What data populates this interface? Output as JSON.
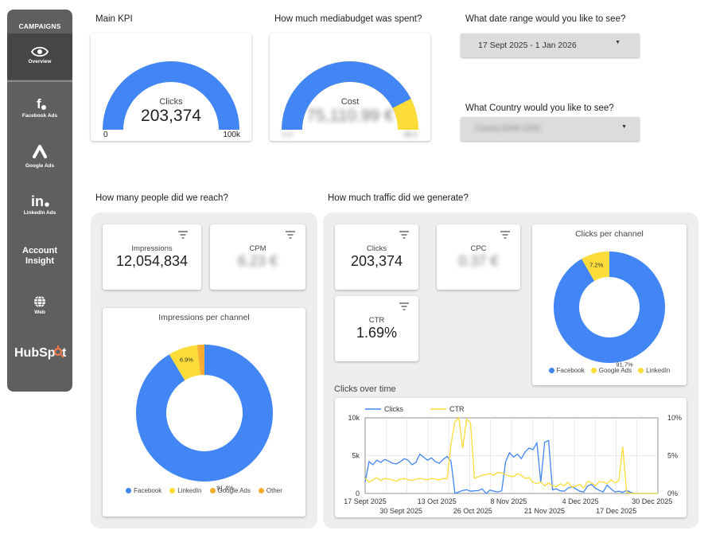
{
  "sidebar": {
    "header": "CAMPAIGNS",
    "items": [
      {
        "label": "Overview",
        "icon": "eye-icon"
      },
      {
        "label": "Facebook Ads",
        "icon": "facebook-icon"
      },
      {
        "label": "Google Ads",
        "icon": "google-ads-icon"
      },
      {
        "label": "LinkedIn Ads",
        "icon": "linkedin-icon"
      },
      {
        "label": "Account Insight",
        "icon": ""
      },
      {
        "label": "Web",
        "icon": "globe-icon"
      },
      {
        "label": "HubSpot",
        "icon": "hubspot-logo"
      }
    ]
  },
  "main_kpi": {
    "title": "Main KPI",
    "label": "Clicks",
    "value": "203,374",
    "min": "0",
    "max": "100k",
    "fraction": 1.0
  },
  "budget": {
    "title": "How much mediabudget was spent?",
    "label": "Cost",
    "value": "75,110.99 €",
    "min": "0.0",
    "max": "88 k",
    "fraction": 0.85
  },
  "date_filter": {
    "title": "What date range would you like to see?",
    "value": "17 Sept 2025 - 1 Jan 2026"
  },
  "country_filter": {
    "title": "What Country would you like to see?",
    "value": "Country (6446 1234)"
  },
  "reach": {
    "title": "How many people did we reach?",
    "impressions_label": "Impressions",
    "impressions_value": "12,054,834",
    "cpm_label": "CPM",
    "cpm_value": "6.23 €",
    "donut_title": "Impressions per channel",
    "legend": [
      "Facebook",
      "LinkedIn",
      "Google Ads",
      "Other"
    ]
  },
  "traffic": {
    "title": "How much traffic did we generate?",
    "clicks_label": "Clicks",
    "clicks_value": "203,374",
    "cpc_label": "CPC",
    "cpc_value": "0.37 €",
    "ctr_label": "CTR",
    "ctr_value": "1.69%",
    "donut_title": "Clicks per channel",
    "legend": [
      "Facebook",
      "Google Ads",
      "LinkedIn"
    ]
  },
  "colors": {
    "blue": "#4285f4",
    "yellow": "#fbdc38",
    "orange": "#f6ad2f",
    "sidebar": "#5f5f5f"
  },
  "chart_data": [
    {
      "type": "pie",
      "title": "Impressions per channel",
      "categories": [
        "Facebook",
        "LinkedIn",
        "Google Ads",
        "Other"
      ],
      "values": [
        91.4,
        6.9,
        0.4,
        1.3
      ],
      "labels": [
        "91.4%",
        "6.9%",
        "",
        ""
      ]
    },
    {
      "type": "pie",
      "title": "Clicks per channel",
      "categories": [
        "Facebook",
        "Google Ads",
        "LinkedIn"
      ],
      "values": [
        91.7,
        7.2,
        1.1
      ],
      "labels": [
        "91.7%",
        "7.2%",
        ""
      ]
    },
    {
      "type": "line",
      "title": "Clicks over time",
      "x_start": "2025-09-17",
      "x_end": "2026-01-01",
      "x_ticks_top": [
        "17 Sept 2025",
        "13 Oct 2025",
        "8 Nov 2025",
        "4 Dec 2025",
        "30 Dec 2025"
      ],
      "x_ticks_bottom": [
        "30 Sept 2025",
        "26 Oct 2025",
        "21 Nov 2025",
        "17 Dec 2025"
      ],
      "y_left_ticks": [
        "0",
        "5k",
        "10k"
      ],
      "y_right_ticks": [
        "0%",
        "5%",
        "10%"
      ],
      "ylim_left": [
        0,
        10000
      ],
      "ylim_right": [
        0,
        10
      ],
      "legend": "top-left",
      "series": [
        {
          "name": "Clicks",
          "axis": "left",
          "color": "#4285f4",
          "values": [
            1500,
            4200,
            3800,
            4400,
            4100,
            4500,
            4300,
            4000,
            3900,
            4200,
            4600,
            4400,
            3800,
            4100,
            5200,
            4800,
            4400,
            4700,
            4200,
            4000,
            4500,
            4900,
            4300,
            0,
            200,
            400,
            500,
            300,
            350,
            380,
            600,
            0,
            450,
            300,
            200,
            350,
            4200,
            5400,
            4800,
            5200,
            4600,
            5500,
            6000,
            5800,
            6700,
            1500,
            6800,
            7000,
            500,
            600,
            350,
            300,
            700,
            900,
            600,
            300,
            200,
            1000,
            1200,
            700,
            400,
            200,
            1100,
            600,
            200,
            300,
            150,
            400,
            150,
            0,
            0,
            0,
            0,
            0,
            0,
            0
          ]
        },
        {
          "name": "CTR",
          "axis": "right",
          "color": "#fbdc38",
          "values": [
            2.0,
            1.5,
            1.8,
            2.1,
            1.7,
            2.0,
            1.9,
            1.8,
            1.6,
            1.9,
            2.0,
            1.8,
            1.7,
            1.9,
            2.0,
            1.9,
            1.8,
            2.0,
            1.9,
            1.8,
            2.0,
            1.9,
            6.5,
            9.5,
            10.0,
            6.0,
            9.8,
            9.3,
            2.0,
            2.2,
            2.4,
            2.5,
            2.6,
            2.4,
            2.8,
            2.7,
            2.5,
            2.3,
            2.2,
            2.6,
            2.4,
            2.0,
            2.1,
            1.5,
            1.3,
            1.5,
            1.0,
            1.4,
            1.0,
            0.9,
            1.3,
            1.0,
            1.5,
            0.8,
            1.0,
            1.2,
            0.7,
            1.6,
            1.4,
            1.0,
            1.6,
            1.5,
            1.3,
            1.8,
            1.4,
            1.7,
            6.2,
            0.2,
            0,
            0,
            0,
            0,
            0,
            0,
            0,
            0
          ]
        }
      ]
    }
  ]
}
